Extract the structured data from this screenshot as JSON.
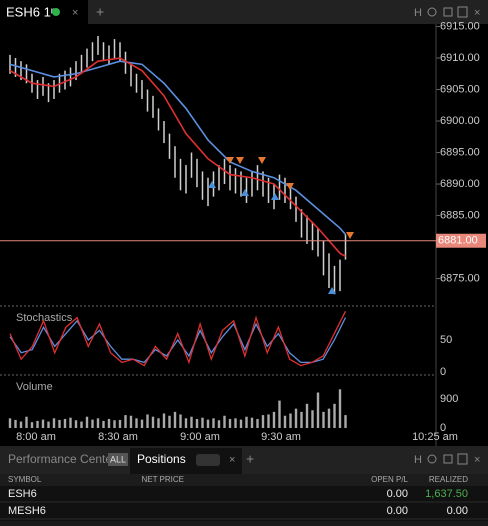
{
  "top_bar": {
    "tab": "ESH6 1ᵐ",
    "icon_text": "H"
  },
  "price_chart": {
    "ylim": [
      6870.8,
      6915.4
    ],
    "yticks": [
      {
        "value": 6915,
        "label": "6915.00"
      },
      {
        "value": 6910,
        "label": "6910.00"
      },
      {
        "value": 6905,
        "label": "6905.00"
      },
      {
        "value": 6900,
        "label": "6900.00"
      },
      {
        "value": 6895,
        "label": "6895.00"
      },
      {
        "value": 6890,
        "label": "6890.00"
      },
      {
        "value": 6885,
        "label": "6885.00"
      },
      {
        "value": 6875,
        "label": "6875.00"
      }
    ],
    "last_price": {
      "value": 6881,
      "label": "6881.00"
    },
    "high": [
      6910.5,
      6910,
      6909.5,
      6909,
      6907.5,
      6906.5,
      6907,
      6906,
      6906.5,
      6907.5,
      6908,
      6908.5,
      6909.5,
      6910.5,
      6911.5,
      6912.5,
      6913.5,
      6912.5,
      6912,
      6913,
      6912.5,
      6911,
      6909,
      6907.5,
      6906.5,
      6905,
      6904,
      6902,
      6900,
      6898,
      6896,
      6894,
      6893,
      6895,
      6894,
      6892,
      6891,
      6892,
      6893,
      6894,
      6893,
      6892.5,
      6892,
      6891,
      6892,
      6893,
      6892,
      6891,
      6890,
      6891.5,
      6891,
      6890,
      6888,
      6886,
      6885,
      6884,
      6883,
      6881,
      6879,
      6877,
      6878,
      6882
    ],
    "low": [
      6907.5,
      6907,
      6906.5,
      6906,
      6904.5,
      6903.5,
      6904,
      6903,
      6903.5,
      6904.5,
      6905,
      6905.5,
      6906.5,
      6907.5,
      6908.5,
      6909.5,
      6910.5,
      6909.5,
      6909,
      6910,
      6909.5,
      6907.5,
      6905.5,
      6904.5,
      6903.5,
      6901.5,
      6900.5,
      6898.5,
      6896.5,
      6894,
      6891,
      6889,
      6888.5,
      6891,
      6889.5,
      6887.5,
      6886.5,
      6888,
      6889,
      6890,
      6889,
      6888.5,
      6888,
      6887,
      6888,
      6889,
      6888,
      6887,
      6886,
      6887.5,
      6887,
      6886,
      6884,
      6881.5,
      6880.5,
      6879.5,
      6878.5,
      6875.5,
      6873.5,
      6872.5,
      6873,
      6878
    ],
    "ma_index": [
      0,
      4,
      8,
      12,
      16,
      20,
      24,
      28,
      32,
      36,
      40,
      44,
      48,
      52,
      56,
      60,
      61
    ],
    "ma_red": [
      6908,
      6906,
      6905.5,
      6907,
      6909.5,
      6910,
      6908,
      6904,
      6898,
      6894,
      6891.5,
      6891,
      6890,
      6886.5,
      6883,
      6879,
      6878.5
    ],
    "ma_blue": [
      6909,
      6908,
      6907,
      6907.5,
      6908.5,
      6909.5,
      6909,
      6906,
      6902,
      6897,
      6893.5,
      6892,
      6891,
      6889,
      6886,
      6883,
      6882
    ]
  },
  "stochastics": {
    "label": "Stochastics",
    "ylim": [
      0,
      100
    ],
    "yticks": [
      50,
      0
    ],
    "k": [
      60,
      20,
      40,
      80,
      30,
      70,
      85,
      40,
      75,
      30,
      15,
      20,
      10,
      40,
      20,
      60,
      15,
      75,
      20,
      65,
      80,
      25,
      85,
      30,
      70,
      20,
      10,
      15,
      25,
      60,
      95
    ],
    "d": [
      55,
      30,
      35,
      70,
      40,
      60,
      80,
      50,
      65,
      40,
      20,
      20,
      15,
      35,
      25,
      50,
      25,
      65,
      30,
      55,
      75,
      35,
      75,
      40,
      60,
      30,
      15,
      15,
      20,
      50,
      85
    ]
  },
  "volume": {
    "label": "Volume",
    "ylim": [
      0,
      1600
    ],
    "yticks": [
      900,
      0
    ],
    "values": [
      300,
      250,
      200,
      350,
      180,
      220,
      260,
      200,
      300,
      250,
      280,
      320,
      240,
      200,
      350,
      260,
      300,
      220,
      280,
      240,
      250,
      400,
      380,
      300,
      260,
      420,
      350,
      300,
      450,
      380,
      500,
      420,
      300,
      350,
      280,
      320,
      260,
      300,
      240,
      380,
      280,
      300,
      260,
      350,
      320,
      280,
      400,
      420,
      500,
      850,
      380,
      450,
      600,
      500,
      750,
      550,
      1100,
      500,
      600,
      750,
      1200,
      400
    ]
  },
  "time_labels": [
    "8:00 am",
    "8:30 am",
    "9:00 am",
    "9:30 am",
    "10:25 am"
  ],
  "bottom_panel": {
    "tabs": [
      "Performance Center",
      "ALL",
      "Positions"
    ],
    "columns": [
      "SYMBOL",
      "NET PRICE",
      "OPEN P/L",
      "REALIZED"
    ],
    "rows": [
      {
        "symbol": "ESH6",
        "open_pl": "0.00",
        "realized": "1,637.50"
      },
      {
        "symbol": "MESH6",
        "open_pl": "0.00",
        "realized": "0.00"
      }
    ]
  }
}
